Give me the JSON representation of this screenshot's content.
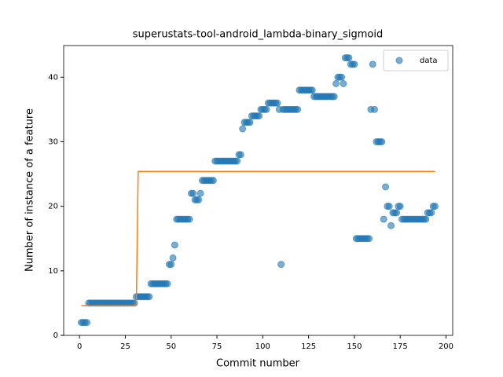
{
  "chart_data": {
    "type": "scatter",
    "title": "superustats-tool-android_lambda-binary_sigmoid",
    "xlabel": "Commit number",
    "ylabel": "Number of instance of a feature",
    "xlim": [
      -8.65,
      203.65
    ],
    "ylim": [
      0,
      44.9
    ],
    "xticks": [
      0,
      25,
      50,
      75,
      100,
      125,
      150,
      175,
      200
    ],
    "yticks": [
      0,
      10,
      20,
      30,
      40
    ],
    "legend": "upper right",
    "series": [
      {
        "name": "data",
        "type": "scatter",
        "color": "#1f77b4",
        "x": [
          1,
          2,
          3,
          4,
          5,
          6,
          7,
          8,
          9,
          10,
          11,
          12,
          13,
          14,
          15,
          16,
          17,
          18,
          19,
          20,
          21,
          22,
          23,
          24,
          25,
          26,
          27,
          28,
          29,
          30,
          31,
          32,
          33,
          34,
          35,
          36,
          37,
          38,
          39,
          40,
          41,
          42,
          43,
          44,
          45,
          46,
          47,
          48,
          49,
          50,
          51,
          52,
          53,
          54,
          55,
          56,
          57,
          58,
          59,
          60,
          61,
          62,
          63,
          64,
          65,
          66,
          67,
          68,
          69,
          70,
          71,
          72,
          73,
          74,
          75,
          76,
          77,
          78,
          79,
          80,
          81,
          82,
          83,
          84,
          85,
          86,
          87,
          88,
          89,
          90,
          91,
          92,
          93,
          94,
          95,
          96,
          97,
          98,
          99,
          100,
          101,
          102,
          103,
          104,
          105,
          106,
          107,
          108,
          109,
          110,
          111,
          112,
          113,
          114,
          115,
          116,
          117,
          118,
          119,
          120,
          121,
          122,
          123,
          124,
          125,
          126,
          127,
          128,
          129,
          130,
          131,
          132,
          133,
          134,
          135,
          136,
          137,
          138,
          139,
          140,
          141,
          142,
          143,
          144,
          145,
          146,
          147,
          148,
          149,
          150,
          151,
          152,
          153,
          154,
          155,
          156,
          157,
          158,
          159,
          160,
          161,
          162,
          163,
          164,
          165,
          166,
          167,
          168,
          169,
          170,
          171,
          172,
          173,
          174,
          175,
          176,
          177,
          178,
          179,
          180,
          181,
          182,
          183,
          184,
          185,
          186,
          187,
          188,
          189,
          190,
          191,
          192,
          193,
          194
        ],
        "values": [
          2,
          2,
          2,
          2,
          5,
          5,
          5,
          5,
          5,
          5,
          5,
          5,
          5,
          5,
          5,
          5,
          5,
          5,
          5,
          5,
          5,
          5,
          5,
          5,
          5,
          5,
          5,
          5,
          5,
          5,
          6,
          6,
          6,
          6,
          6,
          6,
          6,
          6,
          8,
          8,
          8,
          8,
          8,
          8,
          8,
          8,
          8,
          8,
          11,
          11,
          12,
          14,
          18,
          18,
          18,
          18,
          18,
          18,
          18,
          18,
          22,
          22,
          21,
          21,
          21,
          22,
          24,
          24,
          24,
          24,
          24,
          24,
          24,
          27,
          27,
          27,
          27,
          27,
          27,
          27,
          27,
          27,
          27,
          27,
          27,
          27,
          28,
          28,
          32,
          33,
          33,
          33,
          33,
          34,
          34,
          34,
          34,
          34,
          35,
          35,
          35,
          35,
          36,
          36,
          36,
          36,
          36,
          36,
          35,
          11,
          35,
          35,
          35,
          35,
          35,
          35,
          35,
          35,
          35,
          38,
          38,
          38,
          38,
          38,
          38,
          38,
          38,
          37,
          37,
          37,
          37,
          37,
          37,
          37,
          37,
          37,
          37,
          37,
          37,
          39,
          40,
          40,
          40,
          39,
          43,
          43,
          43,
          42,
          42,
          42,
          15,
          15,
          15,
          15,
          15,
          15,
          15,
          15,
          35,
          42,
          35,
          30,
          30,
          30,
          30,
          18,
          23,
          20,
          20,
          17,
          19,
          19,
          19,
          20,
          20,
          18,
          18,
          18,
          18,
          18,
          18,
          18,
          18,
          18,
          18,
          18,
          18,
          18,
          18,
          19,
          19,
          19,
          20,
          20
        ]
      },
      {
        "type": "line",
        "color": "#ff7f0e",
        "x": [
          1,
          30,
          31,
          32,
          194
        ],
        "values": [
          4.6,
          4.6,
          4.7,
          25.4,
          25.4
        ]
      }
    ]
  }
}
